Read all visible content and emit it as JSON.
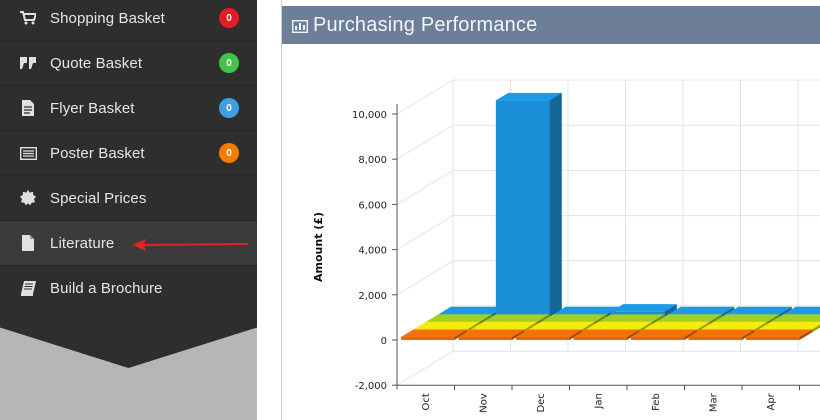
{
  "sidebar": {
    "items": [
      {
        "label": "Shopping Basket",
        "icon": "cart-icon",
        "badge": "0",
        "badge_color": "#e51c23"
      },
      {
        "label": "Quote Basket",
        "icon": "quote-icon",
        "badge": "0",
        "badge_color": "#43c449"
      },
      {
        "label": "Flyer Basket",
        "icon": "document-icon",
        "badge": "0",
        "badge_color": "#3f9fe0"
      },
      {
        "label": "Poster Basket",
        "icon": "list-icon",
        "badge": "0",
        "badge_color": "#f57c00"
      },
      {
        "label": "Special Prices",
        "icon": "starburst-icon"
      },
      {
        "label": "Literature",
        "icon": "file-icon"
      },
      {
        "label": "Build a Brochure",
        "icon": "book-icon"
      }
    ]
  },
  "panel": {
    "title": "Purchasing Performance",
    "icon": "chart-icon"
  },
  "chart_data": {
    "type": "bar",
    "ylabel": "Amount (£)",
    "ylim": [
      -2000,
      10000
    ],
    "yticks": [
      "-2,000",
      "0",
      "2,000",
      "4,000",
      "6,000",
      "8,000",
      "10,000"
    ],
    "categories": [
      "Oct",
      "Nov",
      "Dec",
      "Jan",
      "Feb",
      "Mar",
      "Apr"
    ],
    "series": [
      {
        "color": "#1a8fd7",
        "values": [
          0,
          9600,
          0,
          250,
          0,
          0,
          0
        ]
      },
      {
        "color": "#97c11f",
        "values": [
          0,
          0,
          0,
          0,
          0,
          0,
          0
        ]
      },
      {
        "color": "#e6d80f",
        "values": [
          0,
          0,
          0,
          0,
          0,
          0,
          0
        ]
      },
      {
        "color": "#e26a0a",
        "values": [
          0,
          0,
          0,
          0,
          0,
          0,
          0
        ]
      }
    ]
  }
}
